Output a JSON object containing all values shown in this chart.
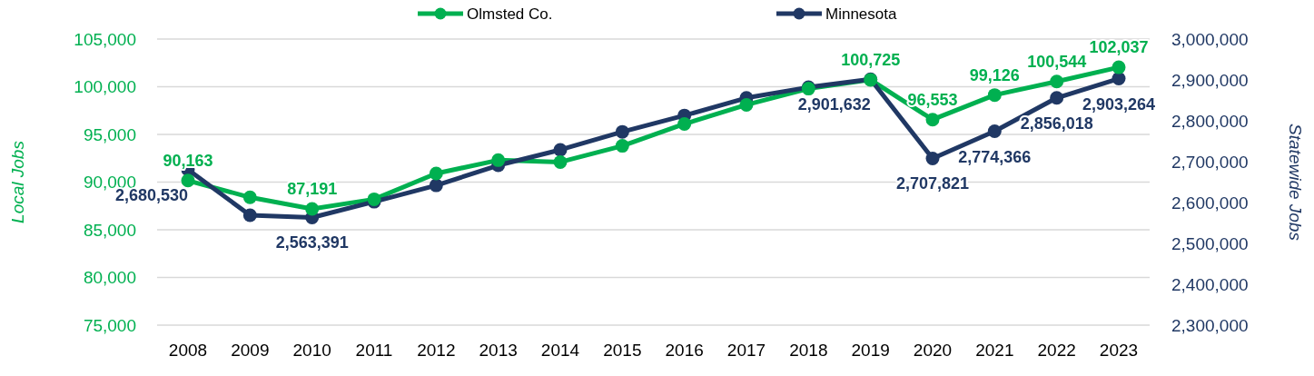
{
  "chart_data": {
    "type": "line",
    "categories": [
      "2008",
      "2009",
      "2010",
      "2011",
      "2012",
      "2013",
      "2014",
      "2015",
      "2016",
      "2017",
      "2018",
      "2019",
      "2020",
      "2021",
      "2022",
      "2023"
    ],
    "series": [
      {
        "name": "Olmsted Co.",
        "color": "#00b050",
        "values": [
          90163,
          88400,
          87191,
          88200,
          90900,
          92300,
          92100,
          93800,
          96100,
          98100,
          99800,
          100725,
          96553,
          99126,
          100544,
          102037
        ],
        "value_labels": [
          "90,163",
          null,
          "87,191",
          null,
          null,
          null,
          null,
          null,
          null,
          null,
          null,
          "100,725",
          "96,553",
          "99,126",
          "100,544",
          "102,037"
        ]
      },
      {
        "name": "Minnesota",
        "color": "#203864",
        "axis": "y2",
        "values": [
          2680530,
          2569000,
          2563391,
          2602000,
          2642000,
          2691000,
          2729000,
          2773000,
          2813000,
          2856000,
          2882000,
          2901632,
          2707821,
          2774366,
          2856018,
          2903264
        ],
        "value_labels": [
          "2,680,530",
          null,
          "2,563,391",
          null,
          null,
          null,
          null,
          null,
          null,
          null,
          null,
          "2,901,632",
          "2,707,821",
          "2,774,366",
          "2,856,018",
          "2,903,264"
        ]
      }
    ],
    "ylabel": "Local Jobs",
    "y2label": "Statewide Jobs",
    "ylim": [
      75000,
      105000
    ],
    "yticks": [
      {
        "value": 75000,
        "label": "75,000"
      },
      {
        "value": 80000,
        "label": "80,000"
      },
      {
        "value": 85000,
        "label": "85,000"
      },
      {
        "value": 90000,
        "label": "90,000"
      },
      {
        "value": 95000,
        "label": "95,000"
      },
      {
        "value": 100000,
        "label": "100,000"
      },
      {
        "value": 105000,
        "label": "105,000"
      }
    ],
    "y2lim": [
      2300000,
      3000000
    ],
    "y2ticks": [
      {
        "value": 2300000,
        "label": "2,300,000"
      },
      {
        "value": 2400000,
        "label": "2,400,000"
      },
      {
        "value": 2500000,
        "label": "2,500,000"
      },
      {
        "value": 2600000,
        "label": "2,600,000"
      },
      {
        "value": 2700000,
        "label": "2,700,000"
      },
      {
        "value": 2800000,
        "label": "2,800,000"
      },
      {
        "value": 2900000,
        "label": "2,900,000"
      },
      {
        "value": 3000000,
        "label": "3,000,000"
      }
    ],
    "grid": "y",
    "legend": "top",
    "marker": "circle",
    "line_style": "solid"
  }
}
